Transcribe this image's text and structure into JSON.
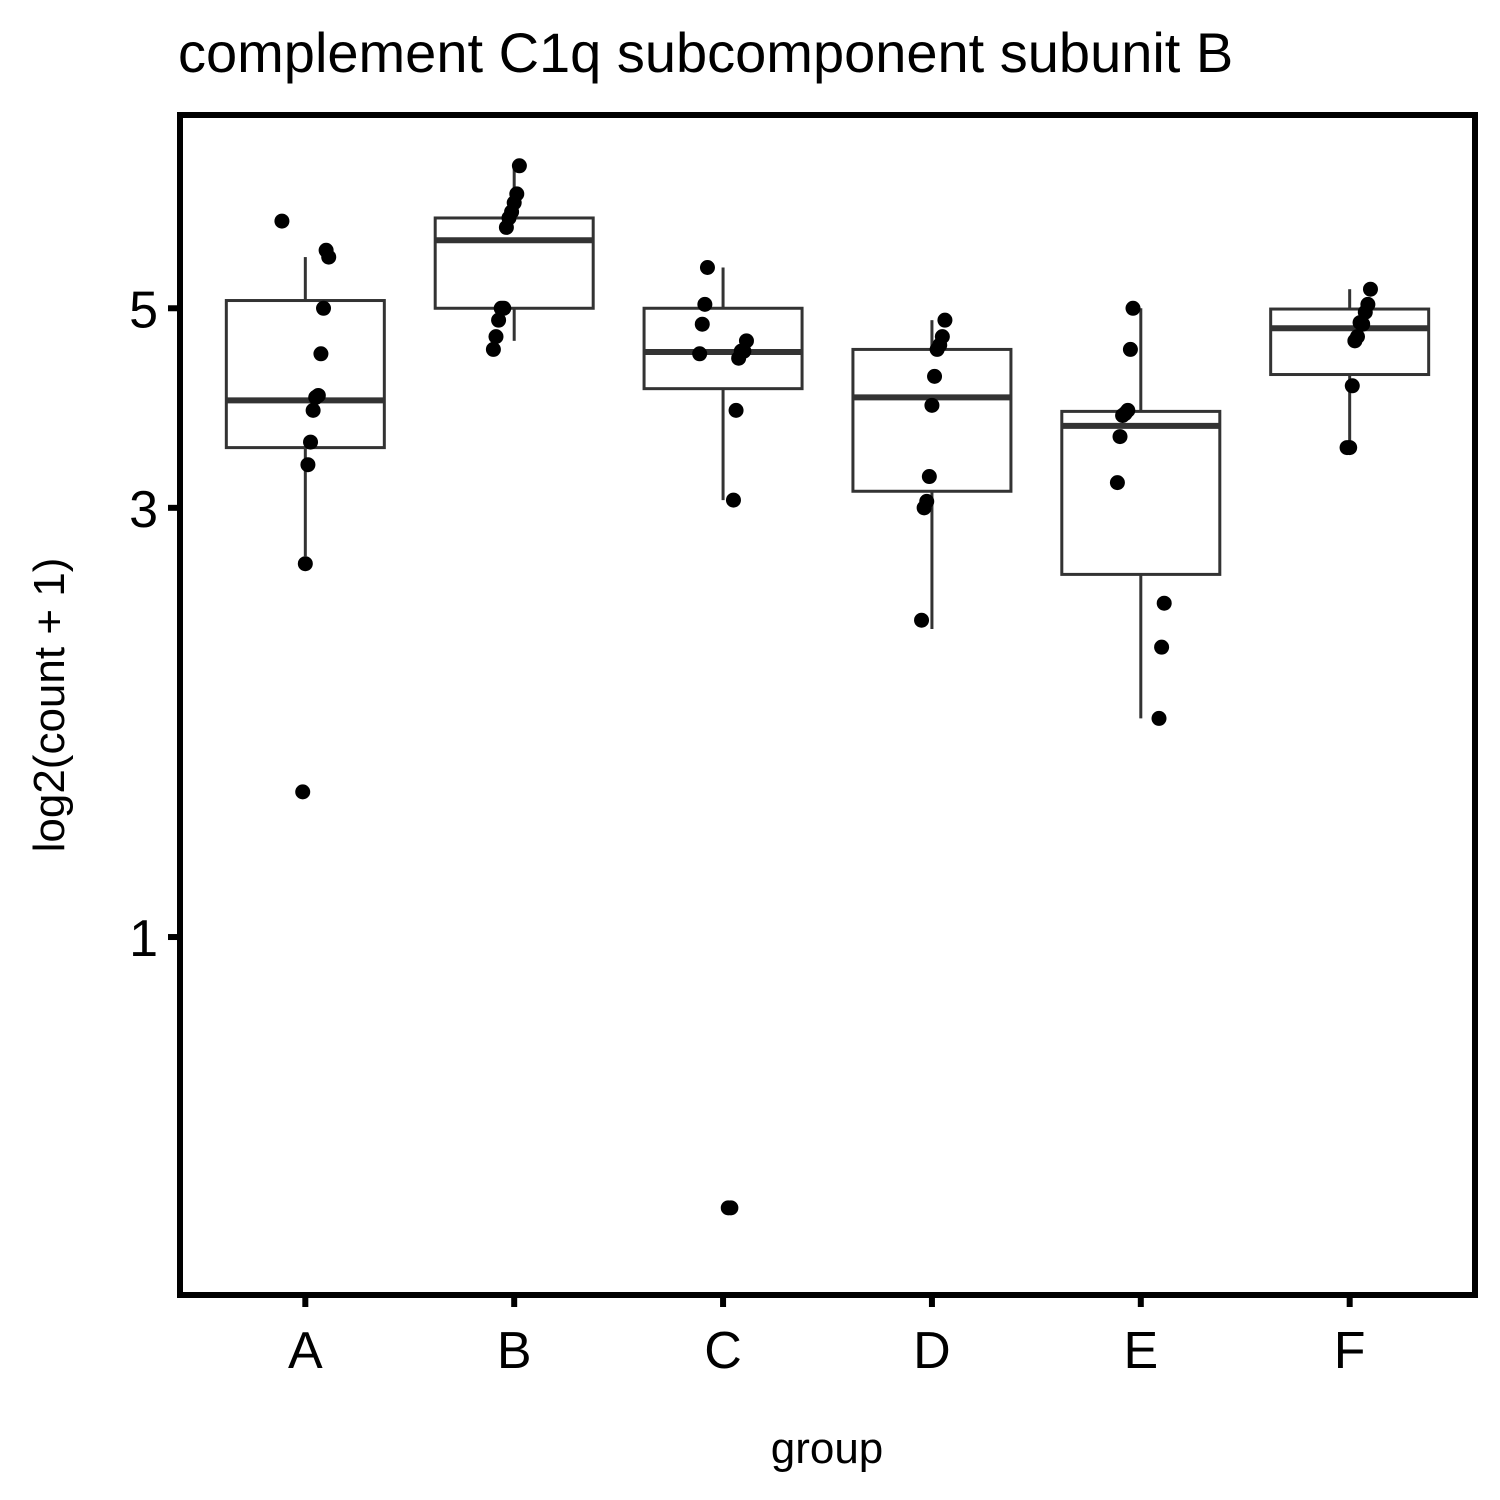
{
  "chart_data": {
    "type": "boxplot",
    "title": "complement C1q subcomponent subunit B",
    "xlabel": "group",
    "ylabel": "log2(count + 1)",
    "y_scale": "log",
    "ylim": [
      0.4,
      8.2
    ],
    "y_ticks": [
      1,
      3,
      5
    ],
    "grid": false,
    "legend": "none",
    "categories": [
      "A",
      "B",
      "C",
      "D",
      "E",
      "F"
    ],
    "boxes": [
      {
        "group": "A",
        "whisker_low": 2.65,
        "q1": 3.5,
        "median": 3.95,
        "q3": 5.1,
        "whisker_high": 5.7
      },
      {
        "group": "B",
        "whisker_low": 4.6,
        "q1": 5.0,
        "median": 5.95,
        "q3": 6.3,
        "whisker_high": 7.2
      },
      {
        "group": "C",
        "whisker_low": 3.06,
        "q1": 4.07,
        "median": 4.47,
        "q3": 5.0,
        "whisker_high": 5.55
      },
      {
        "group": "D",
        "whisker_low": 2.2,
        "q1": 3.13,
        "median": 3.98,
        "q3": 4.5,
        "whisker_high": 4.85
      },
      {
        "group": "E",
        "whisker_low": 1.75,
        "q1": 2.53,
        "median": 3.7,
        "q3": 3.84,
        "whisker_high": 5.0
      },
      {
        "group": "F",
        "whisker_low": 3.5,
        "q1": 4.22,
        "median": 4.75,
        "q3": 4.99,
        "whisker_high": 5.25
      }
    ],
    "points": [
      {
        "group": "A",
        "values": [
          6.25,
          5.7,
          5.8,
          5.0,
          4.45,
          4.0,
          3.98,
          3.85,
          3.55,
          3.35,
          2.6,
          1.45
        ]
      },
      {
        "group": "B",
        "values": [
          7.2,
          6.7,
          6.55,
          6.4,
          6.3,
          6.15,
          5.0,
          5.0,
          4.85,
          4.65,
          4.5
        ]
      },
      {
        "group": "C",
        "values": [
          5.55,
          5.05,
          4.8,
          4.45,
          4.6,
          4.48,
          4.48,
          4.4,
          3.85,
          3.06,
          0.5,
          0.5
        ]
      },
      {
        "group": "D",
        "values": [
          4.85,
          4.65,
          4.55,
          4.5,
          4.2,
          3.9,
          3.25,
          3.05,
          3.0,
          2.25
        ]
      },
      {
        "group": "E",
        "values": [
          5.0,
          4.5,
          3.85,
          3.82,
          3.8,
          3.6,
          3.2,
          2.35,
          2.1,
          1.75
        ]
      },
      {
        "group": "F",
        "values": [
          5.25,
          5.05,
          4.95,
          4.8,
          4.82,
          4.65,
          4.6,
          4.1,
          3.5,
          3.5
        ]
      }
    ],
    "colors": {
      "box_stroke": "#333333",
      "points": "#000000",
      "frame": "#000000",
      "background": "#ffffff"
    }
  }
}
